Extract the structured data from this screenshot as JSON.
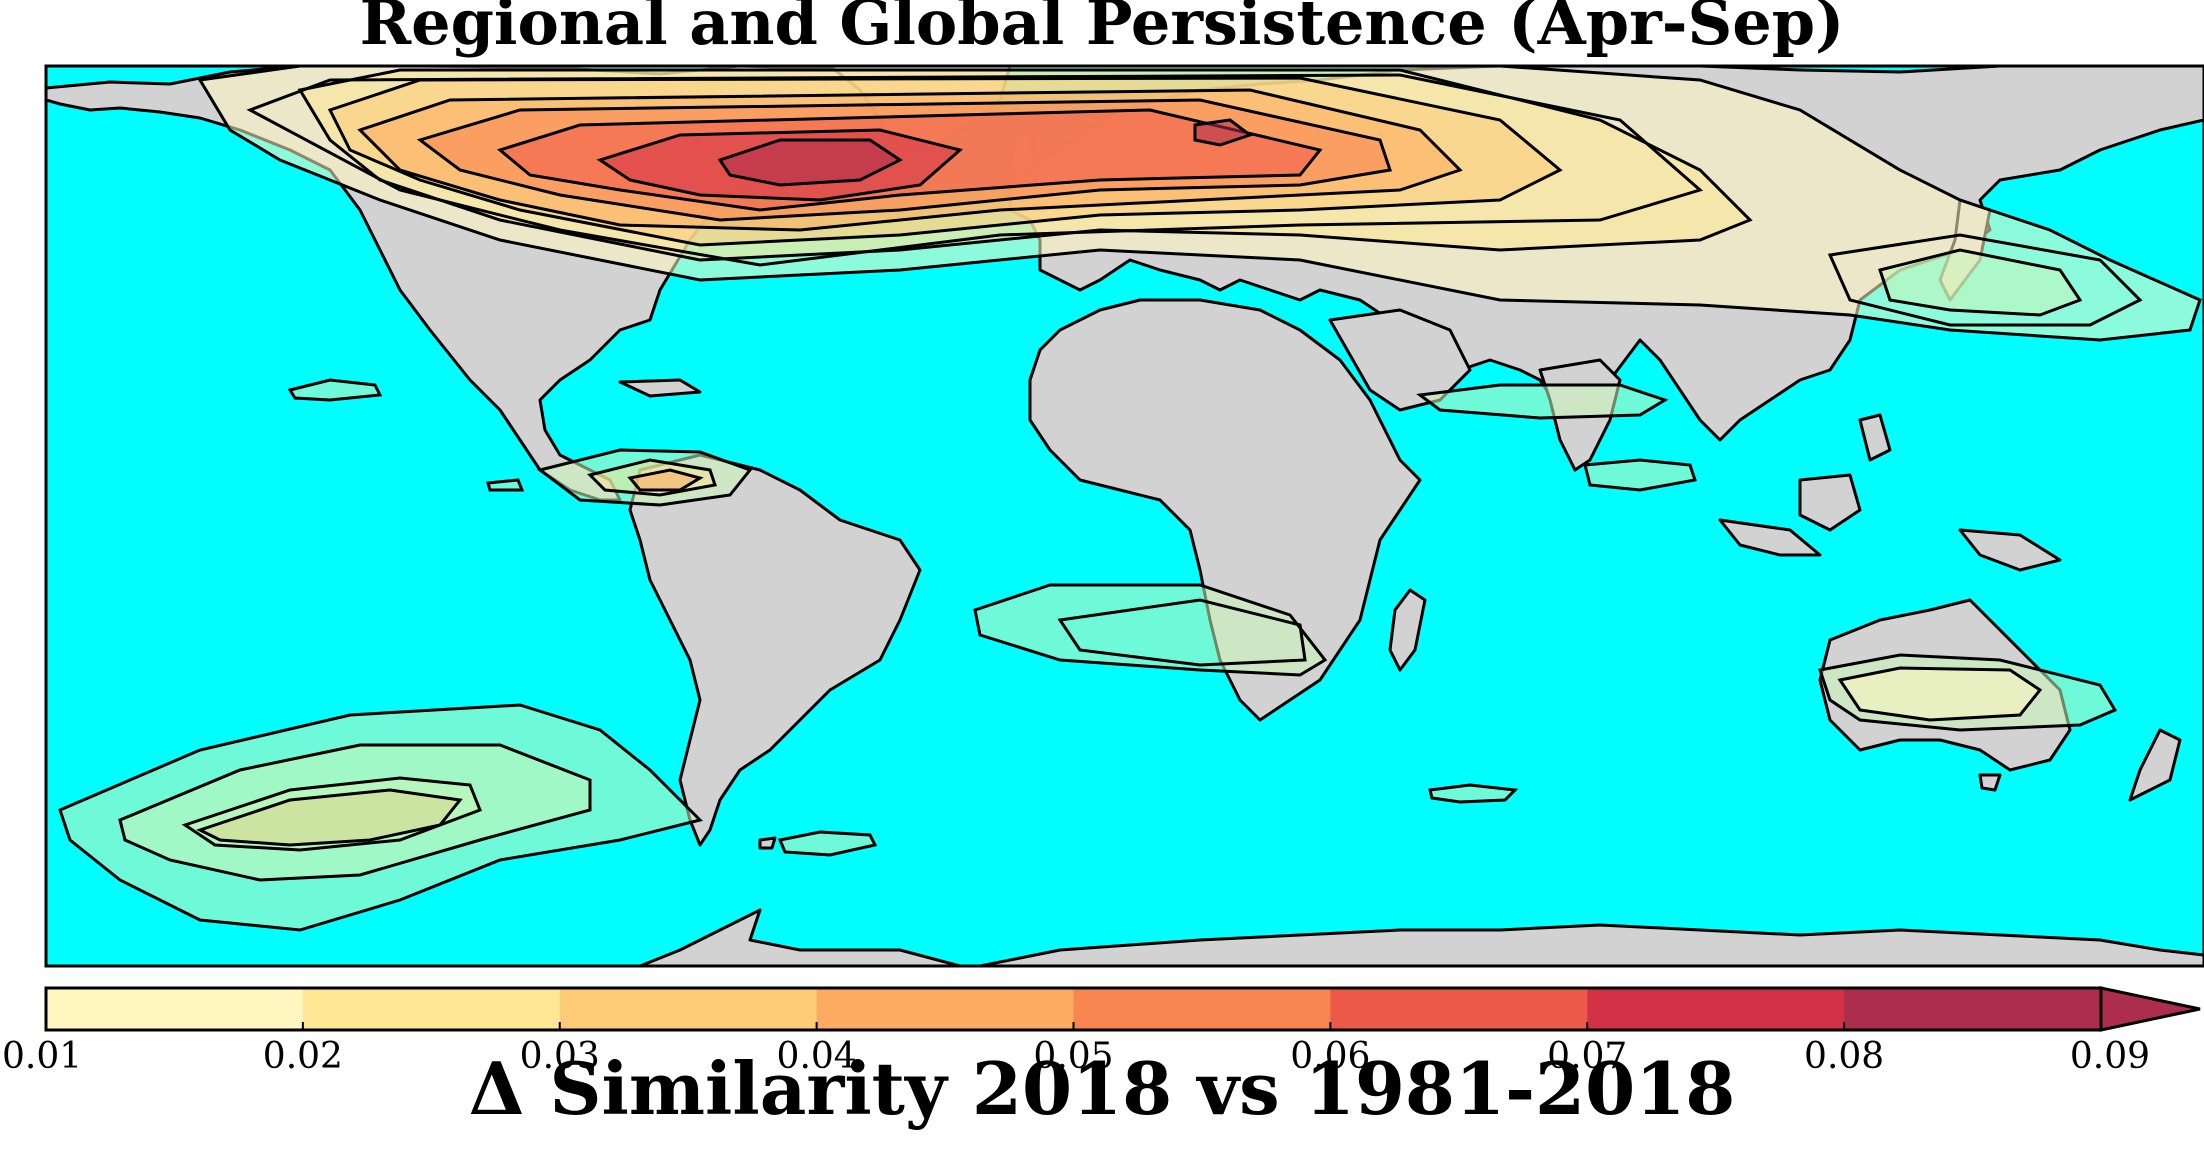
{
  "title": "Regional and Global Persistence (Apr-Sep)",
  "colorbar": {
    "label": "Δ Similarity 2018 vs 1981-2018",
    "ticks": [
      "0.01",
      "0.02",
      "0.03",
      "0.04",
      "0.05",
      "0.06",
      "0.07",
      "0.08",
      "0.09"
    ],
    "levels": [
      0.01,
      0.02,
      0.03,
      0.04,
      0.05,
      0.06,
      0.07,
      0.08,
      0.09
    ],
    "colors": [
      "#fff7bf",
      "#fee695",
      "#fecb78",
      "#fcab60",
      "#f98550",
      "#ee5a4a",
      "#d33148",
      "#ad2d4c"
    ],
    "extend": "max"
  },
  "map": {
    "ocean_color": "#00ffff",
    "land_color": "#d2d2d2",
    "contour_line_color": "#000000"
  }
}
